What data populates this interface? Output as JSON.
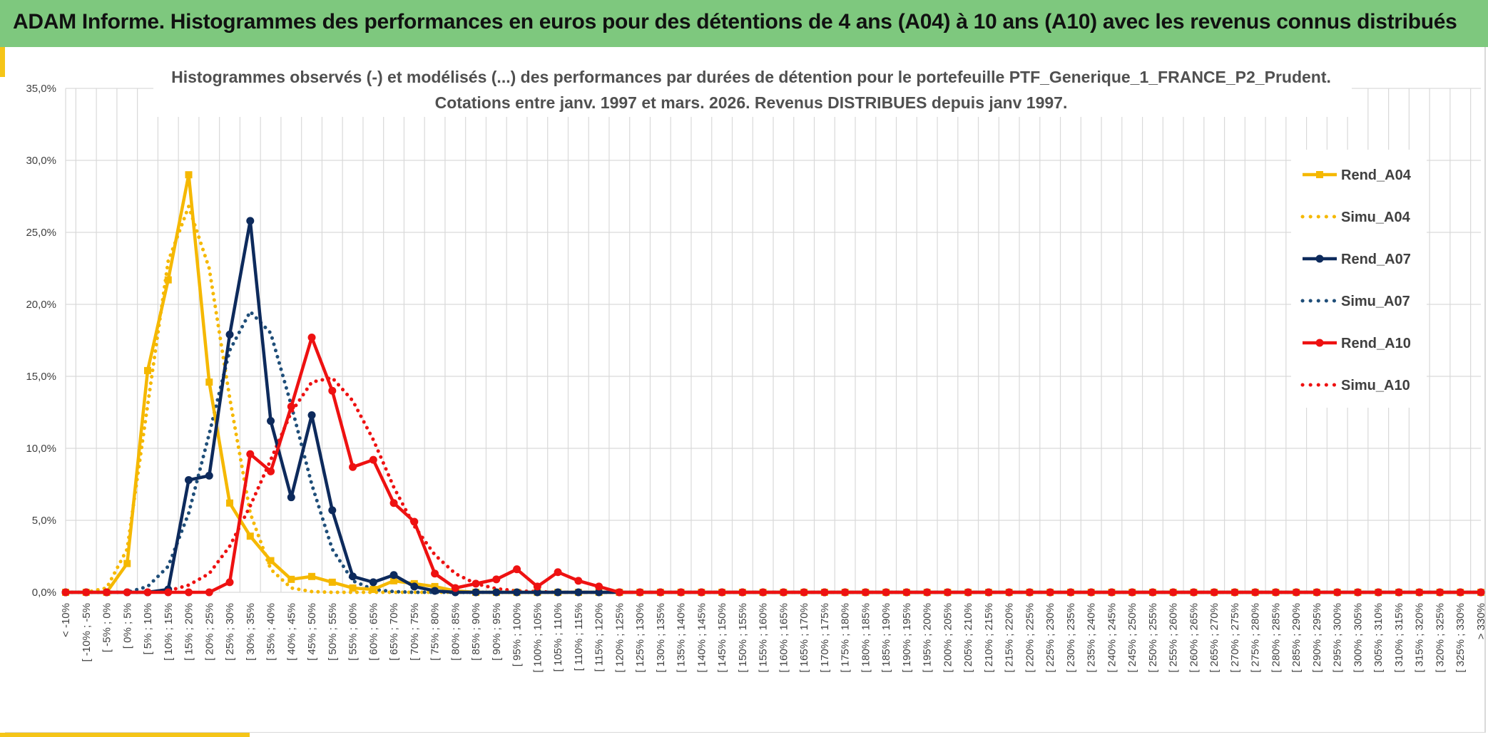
{
  "banner": {
    "title": "ADAM Informe. Histogrammes des performances en euros pour des détentions de 4 ans (A04) à 10 ans (A10) avec les revenus connus distribués"
  },
  "colors": {
    "banner_bg": "#7ec87e",
    "accent": "#f5c518",
    "A04": "#f5b800",
    "A07": "#0d2a5c",
    "A10": "#ee1111",
    "grid": "#d9d9d9"
  },
  "chart_data": {
    "type": "line",
    "title": "Histogrammes observés (-) et modélisés (...) des performances par durées de détention pour le portefeuille PTF_Generique_1_FRANCE_P2_Prudent.",
    "subtitle": "Cotations entre janv. 1997 et mars. 2026. Revenus DISTRIBUES depuis janv 1997.",
    "xlabel": "",
    "ylabel": "",
    "ylim": [
      0,
      35
    ],
    "y_ticks": [
      "0,0%",
      "5,0%",
      "10,0%",
      "15,0%",
      "20,0%",
      "25,0%",
      "30,0%",
      "35,0%"
    ],
    "grid": true,
    "legend_position": "right",
    "categories": [
      "< -10%",
      "[ -10% ; -5%",
      "[ -5% ; 0%",
      "[ 0% ; 5%",
      "[ 5% ; 10%",
      "[ 10% ; 15%",
      "[ 15% ; 20%",
      "[ 20% ; 25%",
      "[ 25% ; 30%",
      "[ 30% ; 35%",
      "[ 35% ; 40%",
      "[ 40% ; 45%",
      "[ 45% ; 50%",
      "[ 50% ; 55%",
      "[ 55% ; 60%",
      "[ 60% ; 65%",
      "[ 65% ; 70%",
      "[ 70% ; 75%",
      "[ 75% ; 80%",
      "[ 80% ; 85%",
      "[ 85% ; 90%",
      "[ 90% ; 95%",
      "[ 95% ; 100%",
      "[ 100% ; 105%",
      "[ 105% ; 110%",
      "[ 110% ; 115%",
      "[ 115% ; 120%",
      "[ 120% ; 125%",
      "[ 125% ; 130%",
      "[ 130% ; 135%",
      "[ 135% ; 140%",
      "[ 140% ; 145%",
      "[ 145% ; 150%",
      "[ 150% ; 155%",
      "[ 155% ; 160%",
      "[ 160% ; 165%",
      "[ 165% ; 170%",
      "[ 170% ; 175%",
      "[ 175% ; 180%",
      "[ 180% ; 185%",
      "[ 185% ; 190%",
      "[ 190% ; 195%",
      "[ 195% ; 200%",
      "[ 200% ; 205%",
      "[ 205% ; 210%",
      "[ 210% ; 215%",
      "[ 215% ; 220%",
      "[ 220% ; 225%",
      "[ 225% ; 230%",
      "[ 230% ; 235%",
      "[ 235% ; 240%",
      "[ 240% ; 245%",
      "[ 245% ; 250%",
      "[ 250% ; 255%",
      "[ 255% ; 260%",
      "[ 260% ; 265%",
      "[ 265% ; 270%",
      "[ 270% ; 275%",
      "[ 275% ; 280%",
      "[ 280% ; 285%",
      "[ 285% ; 290%",
      "[ 290% ; 295%",
      "[ 295% ; 300%",
      "[ 300% ; 305%",
      "[ 305% ; 310%",
      "[ 310% ; 315%",
      "[ 315% ; 320%",
      "[ 320% ; 325%",
      "[ 325% ; 330%",
      "> 330%"
    ],
    "series": [
      {
        "name": "Rend_A04",
        "style": "solid",
        "marker": "square",
        "color": "#f5b800",
        "values": [
          0,
          0,
          0,
          2,
          15.4,
          21.7,
          29,
          14.6,
          6.2,
          3.9,
          2.2,
          0.9,
          1.1,
          0.7,
          0.3,
          0.2,
          0.8,
          0.6,
          0.4,
          0.1,
          0,
          0,
          0,
          0,
          0,
          0,
          0,
          0,
          0,
          0,
          0,
          0,
          0,
          0,
          0,
          0,
          0,
          0,
          0,
          0,
          0,
          0,
          0,
          0,
          0,
          0,
          0,
          0,
          0,
          0,
          0,
          0,
          0,
          0,
          0,
          0,
          0,
          0,
          0,
          0,
          0,
          0,
          0,
          0,
          0,
          0,
          0,
          0,
          0,
          0
        ]
      },
      {
        "name": "Simu_A04",
        "style": "dotted",
        "marker": "none",
        "color": "#f5b800",
        "values": [
          0,
          0,
          0.3,
          3,
          13,
          23,
          26.8,
          22.5,
          13.5,
          5.5,
          1.6,
          0.3,
          0.05,
          0,
          0,
          0,
          0,
          0,
          0,
          0,
          0,
          0,
          0,
          0,
          0,
          0,
          0,
          0,
          0,
          0,
          0,
          0,
          0,
          0,
          0,
          0,
          0,
          0,
          0,
          0,
          0,
          0,
          0,
          0,
          0,
          0,
          0,
          0,
          0,
          0,
          0,
          0,
          0,
          0,
          0,
          0,
          0,
          0,
          0,
          0,
          0,
          0,
          0,
          0,
          0,
          0,
          0,
          0,
          0,
          0
        ]
      },
      {
        "name": "Rend_A07",
        "style": "solid",
        "marker": "circle",
        "color": "#0d2a5c",
        "values": [
          0,
          0,
          0,
          0,
          0,
          0.2,
          7.8,
          8.1,
          17.9,
          25.8,
          11.9,
          6.6,
          12.3,
          5.7,
          1.1,
          0.7,
          1.2,
          0.4,
          0.1,
          0,
          0,
          0,
          0,
          0,
          0,
          0,
          0,
          0,
          0,
          0,
          0,
          0,
          0,
          0,
          0,
          0,
          0,
          0,
          0,
          0,
          0,
          0,
          0,
          0,
          0,
          0,
          0,
          0,
          0,
          0,
          0,
          0,
          0,
          0,
          0,
          0,
          0,
          0,
          0,
          0,
          0,
          0,
          0,
          0,
          0,
          0,
          0,
          0,
          0,
          0
        ]
      },
      {
        "name": "Simu_A07",
        "style": "dotted",
        "marker": "none",
        "color": "#1f4e79",
        "values": [
          0,
          0,
          0,
          0,
          0.4,
          1.8,
          5.5,
          11,
          16.8,
          19.5,
          18,
          13,
          7.5,
          3,
          0.8,
          0.2,
          0.05,
          0,
          0,
          0,
          0,
          0,
          0,
          0,
          0,
          0,
          0,
          0,
          0,
          0,
          0,
          0,
          0,
          0,
          0,
          0,
          0,
          0,
          0,
          0,
          0,
          0,
          0,
          0,
          0,
          0,
          0,
          0,
          0,
          0,
          0,
          0,
          0,
          0,
          0,
          0,
          0,
          0,
          0,
          0,
          0,
          0,
          0,
          0,
          0,
          0,
          0,
          0,
          0,
          0
        ]
      },
      {
        "name": "Rend_A10",
        "style": "solid",
        "marker": "circle",
        "color": "#ee1111",
        "values": [
          0,
          0,
          0,
          0,
          0,
          0,
          0,
          0,
          0.7,
          9.6,
          8.4,
          12.9,
          17.7,
          14,
          8.7,
          9.2,
          6.2,
          4.9,
          1.3,
          0.3,
          0.6,
          0.9,
          1.6,
          0.4,
          1.4,
          0.8,
          0.4,
          0,
          0,
          0,
          0,
          0,
          0,
          0,
          0,
          0,
          0,
          0,
          0,
          0,
          0,
          0,
          0,
          0,
          0,
          0,
          0,
          0,
          0,
          0,
          0,
          0,
          0,
          0,
          0,
          0,
          0,
          0,
          0,
          0,
          0,
          0,
          0,
          0,
          0,
          0,
          0,
          0,
          0,
          0
        ]
      },
      {
        "name": "Simu_A10",
        "style": "dotted",
        "marker": "none",
        "color": "#ee1111",
        "values": [
          0,
          0,
          0,
          0,
          0,
          0.1,
          0.5,
          1.3,
          3.2,
          6,
          9.2,
          12.5,
          14.6,
          14.9,
          13.3,
          10.6,
          7.3,
          4.6,
          2.6,
          1.3,
          0.6,
          0.25,
          0.1,
          0.05,
          0,
          0,
          0,
          0,
          0,
          0,
          0,
          0,
          0,
          0,
          0,
          0,
          0,
          0,
          0,
          0,
          0,
          0,
          0,
          0,
          0,
          0,
          0,
          0,
          0,
          0,
          0,
          0,
          0,
          0,
          0,
          0,
          0,
          0,
          0,
          0,
          0,
          0,
          0,
          0,
          0,
          0,
          0,
          0,
          0,
          0
        ]
      }
    ]
  }
}
